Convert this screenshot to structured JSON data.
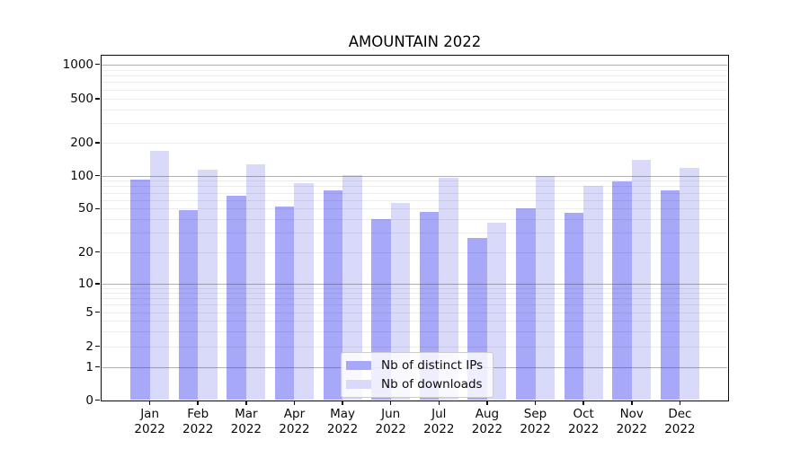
{
  "title": "AMOUNTAIN 2022",
  "year_label": "2022",
  "colors": {
    "distinct_ips_bar": "#a8a8f8",
    "downloads_bar": "#d9d9fa",
    "spine": "#0a0a0a",
    "major_grid": "#b3b3b3",
    "minor_grid": "#ededed",
    "legend_border": "#cccccc",
    "background": "#ffffff"
  },
  "y_axis": {
    "tick_labels": [
      "0",
      "1",
      "2",
      "5",
      "10",
      "20",
      "50",
      "100",
      "200",
      "500",
      "1000"
    ],
    "tick_values": [
      0,
      1,
      2,
      5,
      10,
      20,
      50,
      100,
      200,
      500,
      1000
    ]
  },
  "x_axis": {
    "months": [
      "Jan",
      "Feb",
      "Mar",
      "Apr",
      "May",
      "Jun",
      "Jul",
      "Aug",
      "Sep",
      "Oct",
      "Nov",
      "Dec"
    ],
    "year": "2022"
  },
  "chart_data": {
    "type": "bar",
    "title": "AMOUNTAIN 2022",
    "categories": [
      "Jan 2022",
      "Feb 2022",
      "Mar 2022",
      "Apr 2022",
      "May 2022",
      "Jun 2022",
      "Jul 2022",
      "Aug 2022",
      "Sep 2022",
      "Oct 2022",
      "Nov 2022",
      "Dec 2022"
    ],
    "series": [
      {
        "name": "Nb of distinct IPs",
        "color": "#a8a8f8",
        "values": [
          92,
          48,
          65,
          52,
          73,
          40,
          47,
          27,
          50,
          46,
          89,
          74
        ]
      },
      {
        "name": "Nb of downloads",
        "color": "#d9d9fa",
        "values": [
          168,
          113,
          127,
          85,
          102,
          56,
          96,
          37,
          100,
          81,
          139,
          117
        ]
      }
    ],
    "xlabel": "",
    "ylabel": "",
    "yscale": "symlog",
    "yticks": [
      0,
      1,
      2,
      5,
      10,
      20,
      50,
      100,
      200,
      500,
      1000
    ],
    "ylim": [
      0,
      1200
    ],
    "grid": true,
    "legend_position": "lower center"
  }
}
